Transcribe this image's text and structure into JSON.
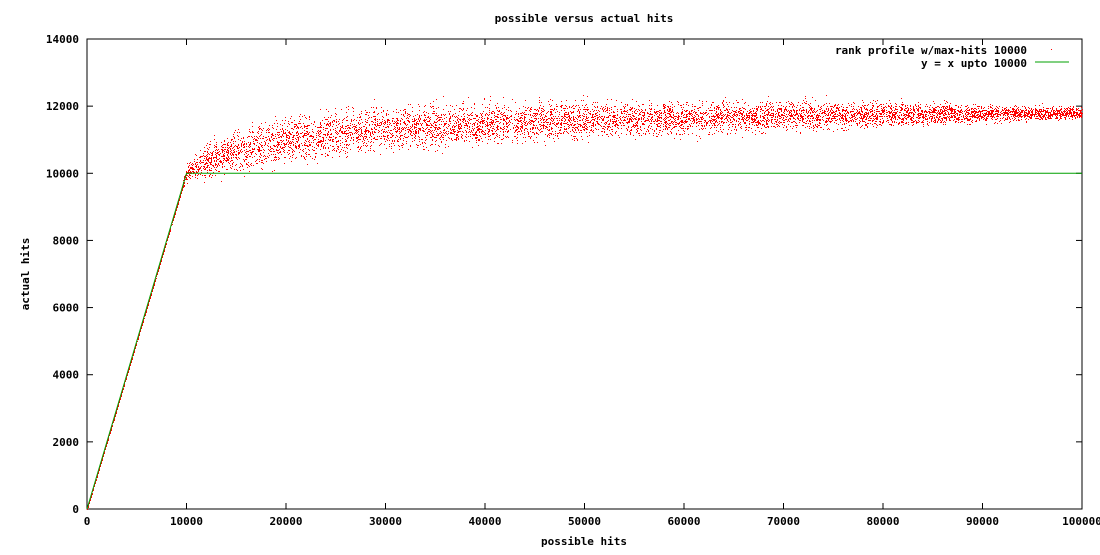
{
  "chart_data": {
    "type": "scatter",
    "title": "possible versus actual hits",
    "xlabel": "possible hits",
    "ylabel": "actual hits",
    "xlim": [
      0,
      100000
    ],
    "ylim": [
      0,
      14000
    ],
    "xticks": [
      "0",
      "10000",
      "20000",
      "30000",
      "40000",
      "50000",
      "60000",
      "70000",
      "80000",
      "90000",
      "100000"
    ],
    "yticks": [
      "0",
      "2000",
      "4000",
      "6000",
      "8000",
      "10000",
      "12000",
      "14000"
    ],
    "grid": false,
    "legend_position": "top-right",
    "series": [
      {
        "name": "rank profile w/max-hits 10000",
        "kind": "points",
        "color": "#ff0000",
        "trend_x": [
          0,
          2000,
          4000,
          6000,
          8000,
          9500,
          10000,
          10500,
          12000,
          15000,
          20000,
          25000,
          30000,
          40000,
          50000,
          60000,
          70000,
          80000,
          90000,
          100000
        ],
        "trend_y": [
          0,
          2000,
          4000,
          6000,
          8000,
          9500,
          10000,
          10150,
          10350,
          10650,
          11000,
          11200,
          11350,
          11500,
          11600,
          11650,
          11720,
          11760,
          11790,
          11800
        ],
        "spread_x": [
          0,
          9500,
          10000,
          12000,
          20000,
          40000,
          60000,
          80000,
          100000
        ],
        "spread_y": [
          0,
          0,
          120,
          260,
          320,
          280,
          230,
          180,
          80
        ]
      },
      {
        "name": "y = x upto 10000",
        "kind": "line",
        "color": "#00a000",
        "x": [
          0,
          10000,
          100000
        ],
        "y": [
          0,
          10000,
          10000
        ]
      }
    ]
  }
}
